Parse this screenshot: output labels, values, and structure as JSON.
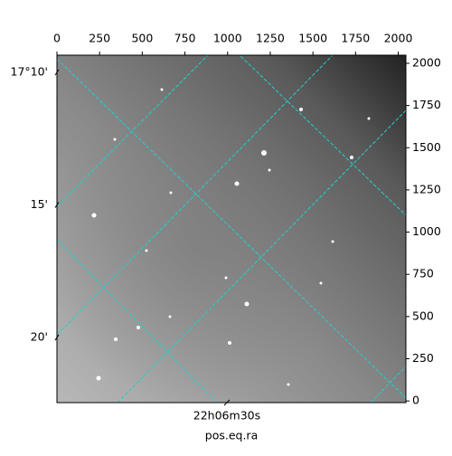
{
  "chart_data": {
    "type": "image",
    "xlabel": "pos.eq.ra",
    "xlim": [
      0,
      2045
    ],
    "xticks": [
      0,
      250,
      500,
      750,
      1000,
      1250,
      1500,
      1750,
      2000
    ],
    "ylim": [
      -10,
      2048
    ],
    "yticks": [
      0,
      250,
      500,
      750,
      1000,
      1250,
      1500,
      1750,
      2000
    ],
    "dec_lim": [
      -17.3742,
      -17.1559
    ],
    "dec_ticks": [
      {
        "value": -17.1667,
        "label": "17°10'"
      },
      {
        "value": -17.25,
        "label": "15'"
      },
      {
        "value": -17.3333,
        "label": "20'"
      }
    ],
    "ra_lim": [
      36.71,
      22.93
    ],
    "ra_ticks": [
      {
        "value": 30,
        "label": "22h06m30s"
      }
    ]
  }
}
